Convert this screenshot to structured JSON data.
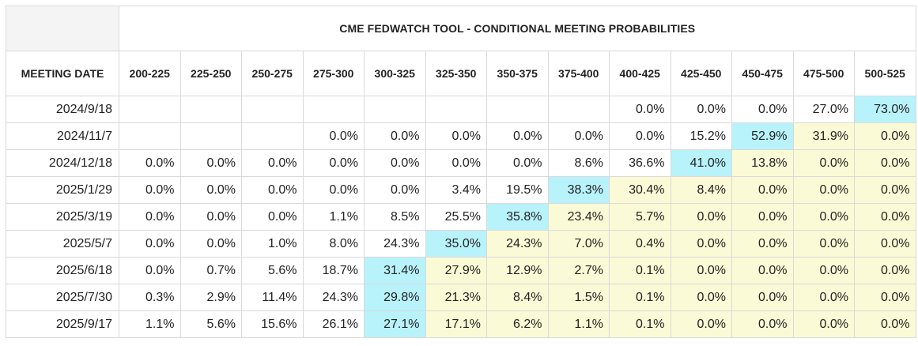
{
  "chart_data": {
    "type": "table",
    "title": "CME FEDWATCH TOOL - CONDITIONAL MEETING PROBABILITIES",
    "row_header_label": "MEETING DATE",
    "columns": [
      "200-225",
      "225-250",
      "250-275",
      "275-300",
      "300-325",
      "325-350",
      "350-375",
      "375-400",
      "400-425",
      "425-450",
      "450-475",
      "475-500",
      "500-525"
    ],
    "rows": [
      {
        "date": "2024/9/18",
        "values": [
          "",
          "",
          "",
          "",
          "",
          "",
          "",
          "",
          "0.0%",
          "0.0%",
          "0.0%",
          "27.0%",
          "73.0%"
        ],
        "styles": [
          "e",
          "e",
          "e",
          "e",
          "e",
          "e",
          "e",
          "e",
          "n",
          "n",
          "n",
          "n",
          "b"
        ]
      },
      {
        "date": "2024/11/7",
        "values": [
          "",
          "",
          "",
          "0.0%",
          "0.0%",
          "0.0%",
          "0.0%",
          "0.0%",
          "0.0%",
          "15.2%",
          "52.9%",
          "31.9%",
          "0.0%"
        ],
        "styles": [
          "e",
          "e",
          "e",
          "n",
          "n",
          "n",
          "n",
          "n",
          "n",
          "n",
          "b",
          "y",
          "y"
        ]
      },
      {
        "date": "2024/12/18",
        "values": [
          "0.0%",
          "0.0%",
          "0.0%",
          "0.0%",
          "0.0%",
          "0.0%",
          "0.0%",
          "8.6%",
          "36.6%",
          "41.0%",
          "13.8%",
          "0.0%",
          "0.0%"
        ],
        "styles": [
          "n",
          "n",
          "n",
          "n",
          "n",
          "n",
          "n",
          "n",
          "n",
          "b",
          "y",
          "y",
          "y"
        ]
      },
      {
        "date": "2025/1/29",
        "values": [
          "0.0%",
          "0.0%",
          "0.0%",
          "0.0%",
          "0.0%",
          "3.4%",
          "19.5%",
          "38.3%",
          "30.4%",
          "8.4%",
          "0.0%",
          "0.0%",
          "0.0%"
        ],
        "styles": [
          "n",
          "n",
          "n",
          "n",
          "n",
          "n",
          "n",
          "b",
          "y",
          "y",
          "y",
          "y",
          "y"
        ]
      },
      {
        "date": "2025/3/19",
        "values": [
          "0.0%",
          "0.0%",
          "0.0%",
          "1.1%",
          "8.5%",
          "25.5%",
          "35.8%",
          "23.4%",
          "5.7%",
          "0.0%",
          "0.0%",
          "0.0%",
          "0.0%"
        ],
        "styles": [
          "n",
          "n",
          "n",
          "n",
          "n",
          "n",
          "b",
          "y",
          "y",
          "y",
          "y",
          "y",
          "y"
        ]
      },
      {
        "date": "2025/5/7",
        "values": [
          "0.0%",
          "0.0%",
          "1.0%",
          "8.0%",
          "24.3%",
          "35.0%",
          "24.3%",
          "7.0%",
          "0.4%",
          "0.0%",
          "0.0%",
          "0.0%",
          "0.0%"
        ],
        "styles": [
          "n",
          "n",
          "n",
          "n",
          "n",
          "b",
          "y",
          "y",
          "y",
          "y",
          "y",
          "y",
          "y"
        ]
      },
      {
        "date": "2025/6/18",
        "values": [
          "0.0%",
          "0.7%",
          "5.6%",
          "18.7%",
          "31.4%",
          "27.9%",
          "12.9%",
          "2.7%",
          "0.1%",
          "0.0%",
          "0.0%",
          "0.0%",
          "0.0%"
        ],
        "styles": [
          "n",
          "n",
          "n",
          "n",
          "b",
          "y",
          "y",
          "y",
          "y",
          "y",
          "y",
          "y",
          "y"
        ]
      },
      {
        "date": "2025/7/30",
        "values": [
          "0.3%",
          "2.9%",
          "11.4%",
          "24.3%",
          "29.8%",
          "21.3%",
          "8.4%",
          "1.5%",
          "0.1%",
          "0.0%",
          "0.0%",
          "0.0%",
          "0.0%"
        ],
        "styles": [
          "n",
          "n",
          "n",
          "n",
          "b",
          "y",
          "y",
          "y",
          "y",
          "y",
          "y",
          "y",
          "y"
        ]
      },
      {
        "date": "2025/9/17",
        "values": [
          "1.1%",
          "5.6%",
          "15.6%",
          "26.1%",
          "27.1%",
          "17.1%",
          "6.2%",
          "1.1%",
          "0.1%",
          "0.0%",
          "0.0%",
          "0.0%",
          "0.0%"
        ],
        "styles": [
          "n",
          "n",
          "n",
          "n",
          "b",
          "y",
          "y",
          "y",
          "y",
          "y",
          "y",
          "y",
          "y"
        ]
      }
    ]
  },
  "colors": {
    "highlight_current": "#b8f2fb",
    "highlight_above": "#fafad6",
    "border": "#d9d9d9",
    "corner": "#f4f4f4"
  }
}
